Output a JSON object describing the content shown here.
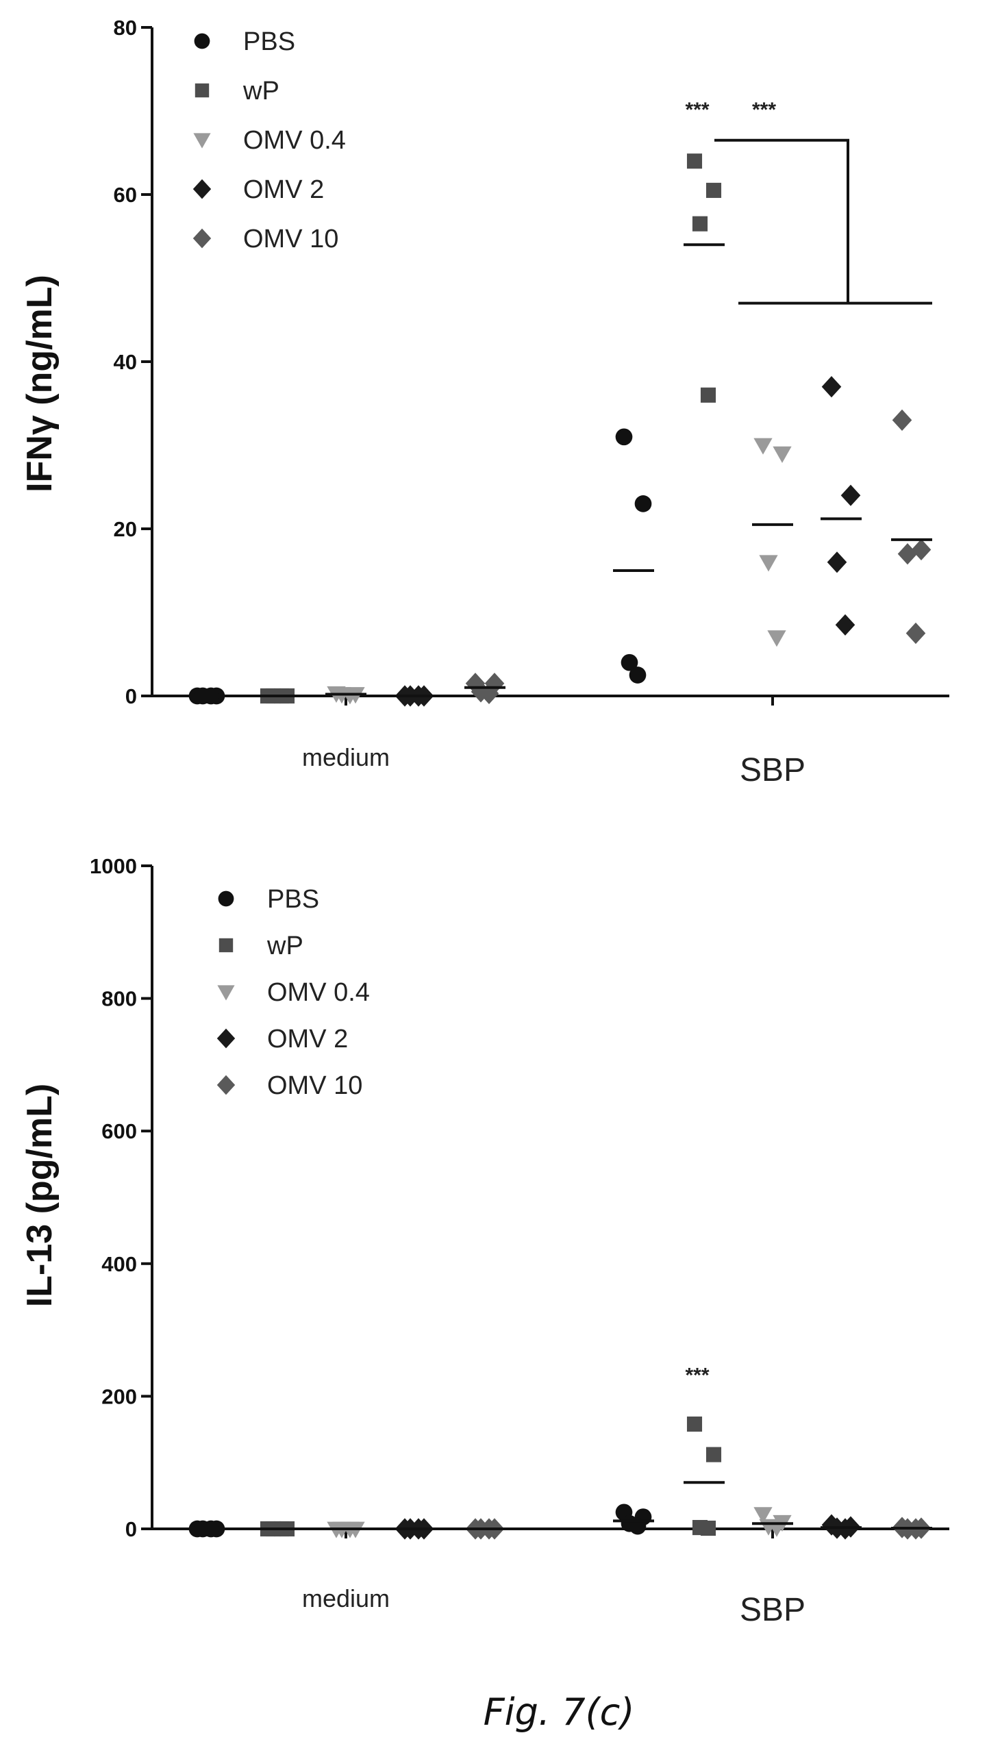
{
  "caption": "Fig. 7(c)",
  "colors": {
    "PBS": "#111111",
    "wP": "#4d4d4d",
    "OMV 0.4": "#9a9a9a",
    "OMV 2": "#1a1a1a",
    "OMV 10": "#5a5a5a"
  },
  "chart_data": [
    {
      "type": "scatter",
      "title": "",
      "ylabel": "IFNγ (ng/mL)",
      "ylim": [
        0,
        80
      ],
      "yticks": [
        0,
        20,
        40,
        60,
        80
      ],
      "categories": [
        "medium",
        "SBP"
      ],
      "legend": {
        "position": "top-left",
        "entries": [
          "PBS",
          "wP",
          "OMV 0.4",
          "OMV 2",
          "OMV 10"
        ]
      },
      "series": [
        {
          "name": "PBS",
          "marker": "circle",
          "medium": [
            0,
            0,
            0,
            0
          ],
          "medium_mean": 0,
          "SBP": [
            31,
            23,
            4,
            2.5
          ],
          "SBP_mean": 15
        },
        {
          "name": "wP",
          "marker": "square",
          "medium": [
            0,
            0,
            0,
            0
          ],
          "medium_mean": 0,
          "SBP": [
            64,
            60.5,
            56.5,
            36
          ],
          "SBP_mean": 54
        },
        {
          "name": "OMV 0.4",
          "marker": "triangle-down",
          "medium": [
            0.3,
            0.2,
            0.2,
            0.1
          ],
          "medium_mean": 0.2,
          "SBP": [
            30,
            29,
            16,
            7
          ],
          "SBP_mean": 20.5
        },
        {
          "name": "OMV 2",
          "marker": "diamond",
          "medium": [
            0,
            0,
            0,
            0
          ],
          "medium_mean": 0,
          "SBP": [
            37,
            24,
            16,
            8.5
          ],
          "SBP_mean": 21.2
        },
        {
          "name": "OMV 10",
          "marker": "diamond",
          "medium": [
            1.5,
            1.5,
            0.5,
            0.3
          ],
          "medium_mean": 1,
          "SBP": [
            33,
            17.5,
            17,
            7.5
          ],
          "SBP_mean": 18.7
        }
      ],
      "annotations": [
        {
          "text": "***",
          "category": "SBP",
          "series": "wP",
          "y": 70
        },
        {
          "text": "***",
          "category": "SBP",
          "bracket": true,
          "y": 70
        }
      ],
      "significance_bracket": {
        "from_series": "wP",
        "to_series": [
          "OMV 0.4",
          "OMV 2",
          "OMV 10"
        ],
        "top_y": 66.5,
        "bottom_y": 47
      }
    },
    {
      "type": "scatter",
      "title": "",
      "ylabel": "IL-13 (pg/mL)",
      "ylim": [
        0,
        1000
      ],
      "yticks": [
        0,
        200,
        400,
        600,
        800,
        1000
      ],
      "categories": [
        "medium",
        "SBP"
      ],
      "legend": {
        "position": "top-left",
        "entries": [
          "PBS",
          "wP",
          "OMV 0.4",
          "OMV 2",
          "OMV 10"
        ]
      },
      "series": [
        {
          "name": "PBS",
          "marker": "circle",
          "medium": [
            0,
            0,
            0,
            0
          ],
          "medium_mean": 0,
          "SBP": [
            25,
            18,
            8,
            4
          ],
          "SBP_mean": 12
        },
        {
          "name": "wP",
          "marker": "square",
          "medium": [
            0,
            0,
            0,
            0
          ],
          "medium_mean": 0,
          "SBP": [
            158,
            112,
            2,
            1
          ],
          "SBP_mean": 70
        },
        {
          "name": "OMV 0.4",
          "marker": "triangle-down",
          "medium": [
            0,
            0,
            0,
            0
          ],
          "medium_mean": 0,
          "SBP": [
            22,
            10,
            4,
            2
          ],
          "SBP_mean": 8
        },
        {
          "name": "OMV 2",
          "marker": "diamond",
          "medium": [
            0,
            0,
            0,
            0
          ],
          "medium_mean": 0,
          "SBP": [
            6,
            3,
            1,
            0
          ],
          "SBP_mean": 2
        },
        {
          "name": "OMV 10",
          "marker": "diamond",
          "medium": [
            0,
            0,
            0,
            0
          ],
          "medium_mean": 0,
          "SBP": [
            2,
            1,
            0,
            0
          ],
          "SBP_mean": 1
        }
      ],
      "annotations": [
        {
          "text": "***",
          "category": "SBP",
          "series": "wP",
          "y": 230
        }
      ]
    }
  ]
}
